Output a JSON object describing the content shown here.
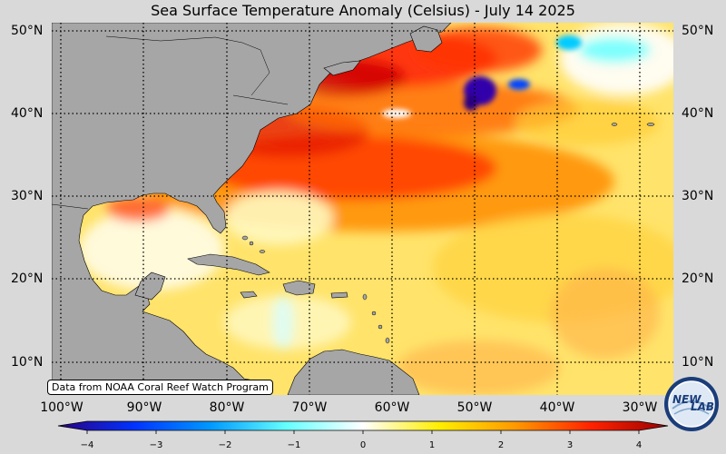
{
  "title": "Sea Surface Temperature Anomaly (Celsius) - July 14 2025",
  "credit": "Data from NOAA Coral Reef Watch Program",
  "map": {
    "lat_labels": [
      "50°N",
      "40°N",
      "30°N",
      "20°N",
      "10°N"
    ],
    "lon_labels": [
      "100°W",
      "90°W",
      "80°W",
      "70°W",
      "60°W",
      "50°W",
      "40°W",
      "30°W"
    ],
    "land_color": "#a6a6a6",
    "ocean_base_color": "#ffe36a"
  },
  "colorbar": {
    "ticks": [
      "−4",
      "−3",
      "−2",
      "−1",
      "0",
      "1",
      "2",
      "3",
      "4"
    ],
    "min": -4,
    "max": 4,
    "colors": [
      "#2b007f",
      "#0033ff",
      "#0099ff",
      "#66ffff",
      "#ffffff",
      "#ffee00",
      "#ff9900",
      "#ff2200",
      "#990000"
    ]
  },
  "logo": {
    "text_1": "NEW",
    "text_2": "LAB"
  }
}
